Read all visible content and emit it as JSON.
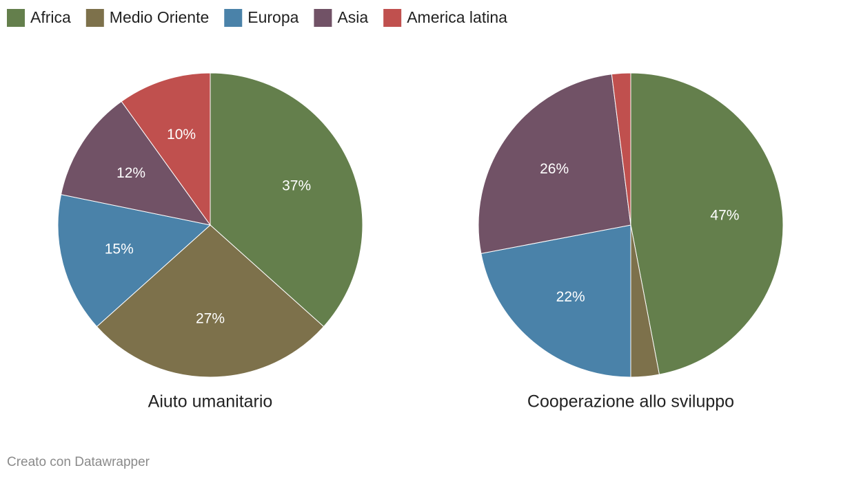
{
  "legend": {
    "names": [
      "Africa",
      "Medio Oriente",
      "Europa",
      "Asia",
      "America latina"
    ],
    "colors": [
      "#647f4c",
      "#7d714b",
      "#4a82a9",
      "#715266",
      "#c0504e"
    ]
  },
  "chart_data": [
    {
      "type": "pie",
      "title": "Aiuto umanitario",
      "values": [
        37,
        27,
        15,
        12,
        10
      ],
      "value_labels": [
        "37%",
        "27%",
        "15%",
        "12%",
        "10%"
      ]
    },
    {
      "type": "pie",
      "title": "Cooperazione allo sviluppo",
      "values": [
        47,
        3,
        22,
        26,
        2
      ],
      "value_labels": [
        "47%",
        null,
        "22%",
        "26%",
        null
      ]
    }
  ],
  "footer": "Creato con Datawrapper"
}
